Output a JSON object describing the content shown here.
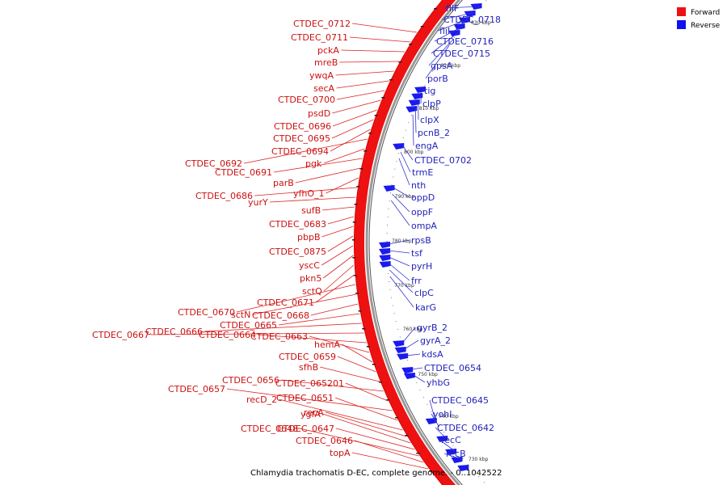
{
  "caption": "Chlamydia trachomatis D-EC, complete genome. - 0..1042522",
  "legend": [
    {
      "label": "Forward",
      "color": "#ee1111"
    },
    {
      "label": "Reverse",
      "color": "#1111ee"
    }
  ],
  "colors": {
    "forward": "#ee1111",
    "forward_label": "#cc1111",
    "reverse": "#1a1aee",
    "reverse_label": "#2222bb",
    "backbone": "#999999"
  },
  "ticks": [
    "830 kbp",
    "820 kbp",
    "810 kbp",
    "800 kbp",
    "790 kbp",
    "780 kbp",
    "770 kbp",
    "760 kbp",
    "750 kbp",
    "740 kbp",
    "730 kbp"
  ],
  "forward_genes": [
    "CTDEC_0712",
    "CTDEC_0711",
    "pckA",
    "mreB",
    "ywqA",
    "secA",
    "CTDEC_0700",
    "psdD",
    "CTDEC_0696",
    "CTDEC_0695",
    "CTDEC_0694",
    "CTDEC_0692",
    "pgk",
    "CTDEC_0691",
    "parB",
    "yfhO_1",
    "CTDEC_0686",
    "yurY",
    "sufB",
    "CTDEC_0683",
    "pbpB",
    "CTDEC_0875",
    "yscC",
    "pkn5",
    "sctQ",
    "CTDEC_0671",
    "CTDEC_0670",
    "sctN",
    "CTDEC_0668",
    "CTDEC_0665",
    "CTDEC_0666",
    "CTDEC_0667",
    "CTDEC_0664",
    "CTDEC_0663",
    "hemA",
    "CTDEC_0659",
    "sfhB",
    "CTDEC_0656",
    "CTDEC_065201",
    "CTDEC_0657",
    "CTDEC_0651",
    "recD_2",
    "recA",
    "ygfA",
    "CTDEC_0647",
    "CTDEC_0648",
    "CTDEC_0646",
    "topA"
  ],
  "reverse_genes": [
    "fliF",
    "CTDEC_0718",
    "fliI",
    "CTDEC_0716",
    "CTDEC_0715",
    "gpsA",
    "porB",
    "tig",
    "clpP",
    "clpX",
    "pcnB_2",
    "engA",
    "CTDEC_0702",
    "trmE",
    "nth",
    "oppD",
    "oppF",
    "ompA",
    "rpsB",
    "tsf",
    "pyrH",
    "frr",
    "clpC",
    "karG",
    "gyrB_2",
    "gyrA_2",
    "kdsA",
    "CTDEC_0654",
    "yhbG",
    "CTDEC_0645",
    "yohI",
    "CTDEC_0642",
    "recC",
    "recB"
  ]
}
